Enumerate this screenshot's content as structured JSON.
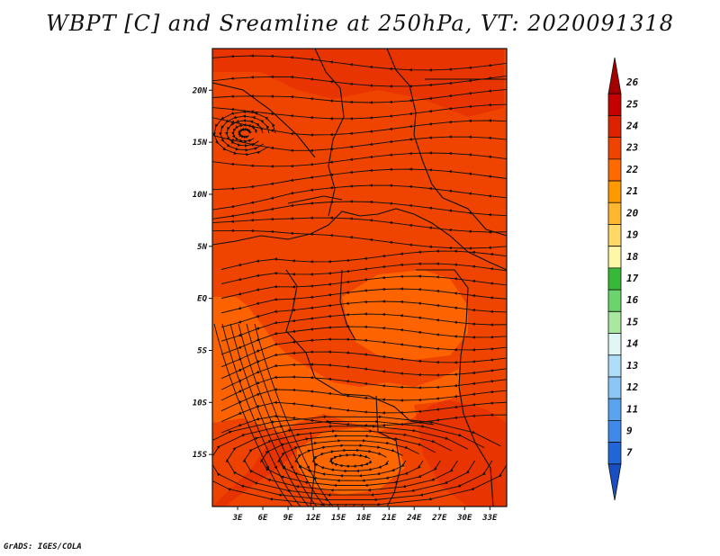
{
  "title": "WBPT [C] and Sreamline at 250hPa, VT: 2020091318",
  "footer": "GrADS: IGES/COLA",
  "map": {
    "variable": "Wet-bulb potential temperature (WBPT) with streamlines",
    "level": "250hPa",
    "lon_range": [
      0,
      35
    ],
    "lat_range": [
      -20,
      24
    ],
    "lat_ticks": [
      "20N",
      "15N",
      "10N",
      "5N",
      "EQ",
      "5S",
      "10S",
      "15S"
    ],
    "lat_values": [
      20,
      15,
      10,
      5,
      0,
      -5,
      -10,
      -15
    ],
    "lon_ticks": [
      "3E",
      "6E",
      "9E",
      "12E",
      "15E",
      "18E",
      "21E",
      "24E",
      "27E",
      "30E",
      "33E"
    ],
    "lon_values": [
      3,
      6,
      9,
      12,
      15,
      18,
      21,
      24,
      27,
      30,
      33
    ]
  },
  "colorbar": {
    "labels": [
      "26",
      "25",
      "24",
      "23",
      "22",
      "21",
      "20",
      "19",
      "18",
      "17",
      "16",
      "15",
      "14",
      "13",
      "12",
      "11",
      "9",
      "7"
    ],
    "colors": [
      "#a50000",
      "#c40000",
      "#dd2200",
      "#ee4400",
      "#ff6a00",
      "#ff9900",
      "#ffb730",
      "#ffd868",
      "#fff7a8",
      "#38b838",
      "#6cd46c",
      "#a8e8a0",
      "#e0f7f5",
      "#b0ddf7",
      "#8cc6f5",
      "#5aa4ef",
      "#3f8ae8",
      "#2166d6",
      "#1a4fc4"
    ]
  }
}
